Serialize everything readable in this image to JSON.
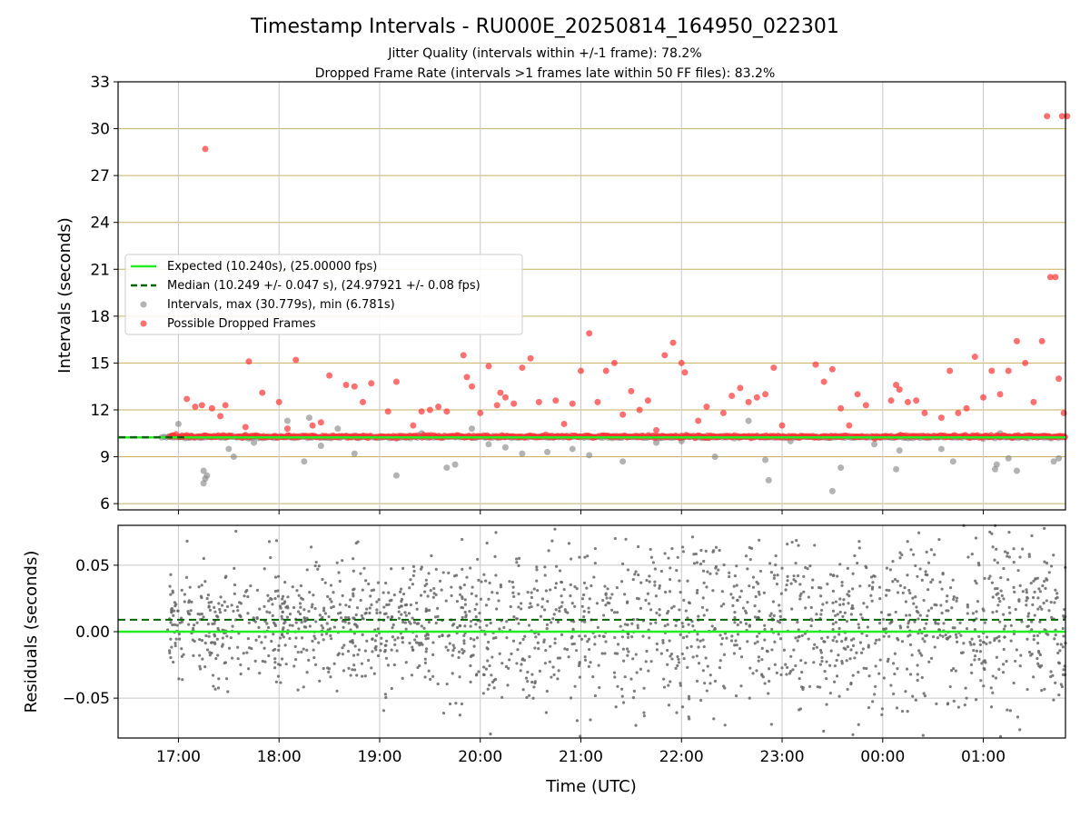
{
  "figure": {
    "title": "Timestamp Intervals - RU000E_20250814_164950_022301",
    "subtitle_line1": "Jitter Quality (intervals within +/-1 frame): 78.2%",
    "subtitle_line2": "Dropped Frame Rate (intervals >1 frames late within 50 FF files): 83.2%"
  },
  "colors": {
    "expected": "#22ee22",
    "median": "#006400",
    "intervals": "#808080",
    "dropped": "#ff3333",
    "hgrid_top": "#c8b060",
    "grid": "#c8c8c8",
    "residual": "#666666"
  },
  "chart_data": [
    {
      "type": "scatter",
      "ylabel": "Intervals (seconds)",
      "ylim": [
        5.6,
        33
      ],
      "xlim": [
        "16:24",
        "01:49"
      ],
      "yticks": [
        6,
        9,
        12,
        15,
        18,
        21,
        24,
        27,
        30,
        33
      ],
      "yticklabels": [
        "6",
        "9",
        "12",
        "15",
        "18",
        "21",
        "24",
        "27",
        "30",
        "33"
      ],
      "grid": "on",
      "legend_position": "middle-left",
      "expected_interval": 10.24,
      "median_interval": 10.249,
      "series": [
        {
          "name": "Expected (10.240s), (25.00000 fps)",
          "kind": "line",
          "y": 10.24
        },
        {
          "name": "Median (10.249 +/- 0.047 s), (24.97921 +/- 0.08 fps)",
          "kind": "dashed-line",
          "y": 10.249
        },
        {
          "name": "Intervals, max (30.779s), min (6.781s)",
          "kind": "points",
          "baseline_range": [
            "16:50",
            "01:49"
          ],
          "baseline_value": 10.25,
          "points": [
            [
              "17:00",
              11.1
            ],
            [
              "17:15",
              8.1
            ],
            [
              "17:15",
              7.3
            ],
            [
              "17:16",
              7.6
            ],
            [
              "17:17",
              7.8
            ],
            [
              "17:30",
              9.5
            ],
            [
              "17:33",
              9.0
            ],
            [
              "17:40",
              10.4
            ],
            [
              "17:45",
              9.9
            ],
            [
              "18:05",
              11.3
            ],
            [
              "18:15",
              8.7
            ],
            [
              "18:18",
              11.5
            ],
            [
              "18:25",
              9.7
            ],
            [
              "18:35",
              10.8
            ],
            [
              "18:45",
              9.2
            ],
            [
              "19:10",
              7.8
            ],
            [
              "19:25",
              10.5
            ],
            [
              "19:40",
              8.3
            ],
            [
              "19:45",
              8.5
            ],
            [
              "19:55",
              10.8
            ],
            [
              "20:05",
              9.8
            ],
            [
              "20:15",
              9.6
            ],
            [
              "20:25",
              9.2
            ],
            [
              "20:40",
              9.3
            ],
            [
              "20:55",
              9.5
            ],
            [
              "21:05",
              9.1
            ],
            [
              "21:25",
              8.7
            ],
            [
              "21:45",
              9.9
            ],
            [
              "22:00",
              10.0
            ],
            [
              "22:20",
              9.0
            ],
            [
              "22:40",
              11.3
            ],
            [
              "22:50",
              8.8
            ],
            [
              "22:52",
              7.5
            ],
            [
              "23:05",
              10.0
            ],
            [
              "23:30",
              6.8
            ],
            [
              "23:35",
              8.3
            ],
            [
              "23:55",
              9.8
            ],
            [
              "00:08",
              8.2
            ],
            [
              "00:10",
              9.4
            ],
            [
              "00:35",
              9.5
            ],
            [
              "00:42",
              8.7
            ],
            [
              "01:07",
              8.2
            ],
            [
              "01:08",
              8.5
            ],
            [
              "01:10",
              10.5
            ],
            [
              "01:15",
              8.9
            ],
            [
              "01:20",
              8.1
            ],
            [
              "01:42",
              8.7
            ],
            [
              "01:45",
              8.9
            ]
          ]
        },
        {
          "name": "Possible Dropped Frames",
          "kind": "points",
          "baseline_range": [
            "16:55",
            "01:49"
          ],
          "baseline_value": 10.3,
          "points": [
            [
              "17:05",
              12.7
            ],
            [
              "17:10",
              12.2
            ],
            [
              "17:14",
              12.3
            ],
            [
              "17:16",
              28.7
            ],
            [
              "17:20",
              12.1
            ],
            [
              "17:25",
              11.6
            ],
            [
              "17:28",
              12.3
            ],
            [
              "17:40",
              10.9
            ],
            [
              "17:42",
              15.1
            ],
            [
              "17:50",
              13.1
            ],
            [
              "18:00",
              12.5
            ],
            [
              "18:05",
              10.8
            ],
            [
              "18:10",
              15.2
            ],
            [
              "18:20",
              11.0
            ],
            [
              "18:25",
              11.2
            ],
            [
              "18:30",
              14.2
            ],
            [
              "18:40",
              13.6
            ],
            [
              "18:45",
              13.5
            ],
            [
              "18:50",
              12.5
            ],
            [
              "18:55",
              13.7
            ],
            [
              "19:05",
              11.9
            ],
            [
              "19:10",
              13.8
            ],
            [
              "19:20",
              11.0
            ],
            [
              "19:25",
              11.9
            ],
            [
              "19:30",
              12.0
            ],
            [
              "19:35",
              12.2
            ],
            [
              "19:40",
              11.9
            ],
            [
              "19:50",
              15.5
            ],
            [
              "19:52",
              14.1
            ],
            [
              "19:55",
              13.5
            ],
            [
              "20:00",
              11.8
            ],
            [
              "20:05",
              14.8
            ],
            [
              "20:10",
              12.3
            ],
            [
              "20:12",
              13.1
            ],
            [
              "20:15",
              12.8
            ],
            [
              "20:20",
              12.4
            ],
            [
              "20:25",
              14.7
            ],
            [
              "20:30",
              15.3
            ],
            [
              "20:35",
              12.5
            ],
            [
              "20:45",
              12.6
            ],
            [
              "20:50",
              11.1
            ],
            [
              "20:55",
              12.4
            ],
            [
              "21:00",
              14.5
            ],
            [
              "21:05",
              16.9
            ],
            [
              "21:10",
              12.5
            ],
            [
              "21:15",
              14.5
            ],
            [
              "21:20",
              15.0
            ],
            [
              "21:25",
              11.7
            ],
            [
              "21:30",
              13.2
            ],
            [
              "21:35",
              12.0
            ],
            [
              "21:40",
              12.6
            ],
            [
              "21:45",
              10.7
            ],
            [
              "21:50",
              15.5
            ],
            [
              "21:55",
              16.3
            ],
            [
              "22:00",
              15.0
            ],
            [
              "22:02",
              14.4
            ],
            [
              "22:10",
              11.3
            ],
            [
              "22:15",
              12.2
            ],
            [
              "22:25",
              11.8
            ],
            [
              "22:30",
              12.9
            ],
            [
              "22:35",
              13.4
            ],
            [
              "22:40",
              12.5
            ],
            [
              "22:45",
              12.8
            ],
            [
              "22:50",
              13.0
            ],
            [
              "22:55",
              14.7
            ],
            [
              "23:00",
              11.0
            ],
            [
              "23:20",
              14.9
            ],
            [
              "23:25",
              13.8
            ],
            [
              "23:30",
              14.6
            ],
            [
              "23:35",
              12.1
            ],
            [
              "23:40",
              11.0
            ],
            [
              "23:45",
              13.0
            ],
            [
              "23:50",
              12.3
            ],
            [
              "24:05",
              12.6
            ],
            [
              "24:08",
              13.6
            ],
            [
              "24:10",
              13.3
            ],
            [
              "24:15",
              12.5
            ],
            [
              "24:20",
              12.6
            ],
            [
              "24:25",
              11.8
            ],
            [
              "24:35",
              11.5
            ],
            [
              "24:40",
              14.5
            ],
            [
              "24:45",
              11.8
            ],
            [
              "24:50",
              12.1
            ],
            [
              "24:55",
              15.4
            ],
            [
              "25:00",
              12.8
            ],
            [
              "25:05",
              14.5
            ],
            [
              "25:10",
              13.0
            ],
            [
              "25:15",
              14.5
            ],
            [
              "25:20",
              16.4
            ],
            [
              "25:25",
              15.0
            ],
            [
              "25:30",
              12.5
            ],
            [
              "25:35",
              16.4
            ],
            [
              "25:40",
              20.5
            ],
            [
              "25:43",
              20.5
            ],
            [
              "25:45",
              14.0
            ],
            [
              "25:48",
              11.8
            ],
            [
              "25:38",
              30.8
            ],
            [
              "25:47",
              30.8
            ],
            [
              "25:50",
              30.8
            ]
          ]
        }
      ]
    },
    {
      "type": "scatter",
      "ylabel": "Residuals (seconds)",
      "xlabel": "Time (UTC)",
      "ylim": [
        -0.08,
        0.08
      ],
      "xlim": [
        "16:24",
        "01:49"
      ],
      "yticks": [
        0.05,
        0.0,
        -0.05
      ],
      "yticklabels": [
        "0.05",
        "0.00",
        "−0.05"
      ],
      "xticks": [
        "17:00",
        "18:00",
        "19:00",
        "20:00",
        "21:00",
        "22:00",
        "23:00",
        "00:00",
        "01:00"
      ],
      "xticklabels": [
        "17:00",
        "18:00",
        "19:00",
        "20:00",
        "21:00",
        "22:00",
        "23:00",
        "00:00",
        "01:00"
      ],
      "grid": "on",
      "expected_residual": 0.0,
      "median_residual": 0.009,
      "residual_cloud": {
        "x_range": [
          "16:53",
          "01:49"
        ],
        "early_spread": 0.025,
        "late_spread": 0.045,
        "count": 2000
      }
    }
  ]
}
